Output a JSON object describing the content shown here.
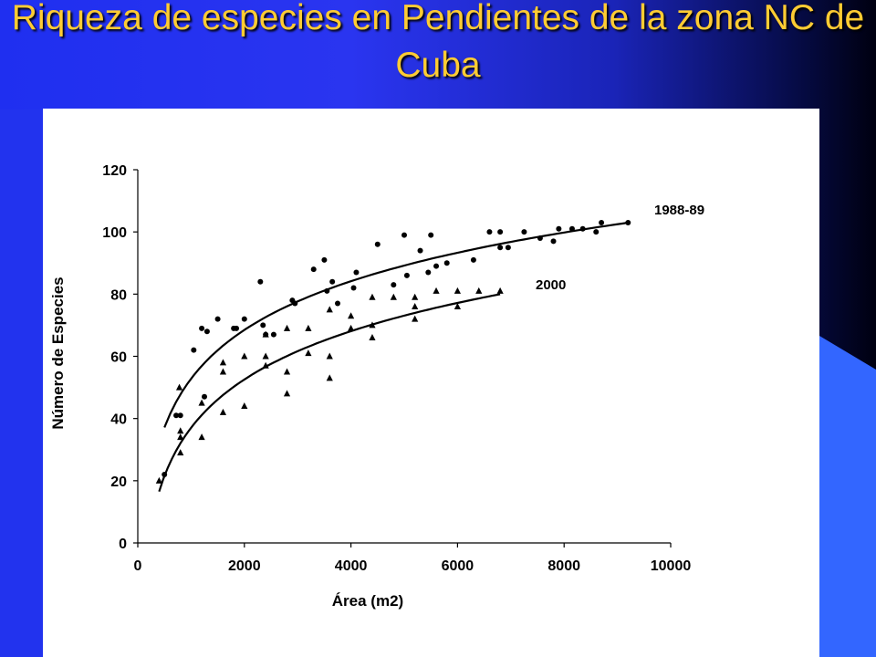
{
  "slide": {
    "title": "Riqueza de especies en Pendientes de la zona NC de Cuba",
    "background_colors": [
      "#1f2ff0",
      "#000010",
      "#3366ff"
    ],
    "title_color": "#ffcc33"
  },
  "chart_data": {
    "type": "scatter",
    "title": "",
    "xlabel": "Área (m2)",
    "ylabel": "Número de Especies",
    "xlim": [
      0,
      10000
    ],
    "ylim": [
      0,
      120
    ],
    "xticks": [
      "0",
      "2000",
      "4000",
      "6000",
      "8000",
      "10000"
    ],
    "yticks": [
      "0",
      "20",
      "40",
      "60",
      "80",
      "100",
      "120"
    ],
    "grid": false,
    "series": [
      {
        "name": "1988-89",
        "marker": "circle",
        "trend": {
          "type": "log",
          "a": -103.3,
          "b": 22.6,
          "x_range": [
            500,
            9200
          ]
        },
        "x": [
          500,
          720,
          800,
          1050,
          1200,
          1250,
          1300,
          1500,
          1800,
          1850,
          2000,
          2300,
          2350,
          2400,
          2550,
          2900,
          2950,
          3300,
          3500,
          3550,
          3650,
          3750,
          4050,
          4100,
          4500,
          4800,
          5000,
          5050,
          5300,
          5450,
          5500,
          5600,
          5800,
          6300,
          6600,
          6800,
          6800,
          6950,
          7250,
          7550,
          7800,
          7900,
          8150,
          8350,
          8600,
          8700,
          9200
        ],
        "y": [
          22,
          41,
          41,
          62,
          69,
          47,
          68,
          72,
          69,
          69,
          72,
          84,
          70,
          67,
          67,
          78,
          77,
          88,
          91,
          81,
          84,
          77,
          82,
          87,
          96,
          83,
          99,
          86,
          94,
          87,
          99,
          89,
          90,
          91,
          100,
          100,
          95,
          95,
          100,
          98,
          97,
          101,
          101,
          101,
          100,
          103,
          103
        ]
      },
      {
        "name": "2000",
        "marker": "triangle",
        "trend": {
          "type": "log",
          "a": -117.7,
          "b": 22.4,
          "x_range": [
            400,
            6800
          ]
        },
        "x": [
          400,
          780,
          800,
          800,
          800,
          1200,
          1200,
          1600,
          1600,
          1600,
          2000,
          2000,
          2400,
          2400,
          2400,
          2800,
          2800,
          2800,
          3200,
          3200,
          3600,
          3600,
          3600,
          4000,
          4000,
          4400,
          4400,
          4400,
          4800,
          5200,
          5200,
          5200,
          5600,
          6000,
          6000,
          6400,
          6800
        ],
        "y": [
          20,
          50,
          36,
          34,
          29,
          34,
          45,
          58,
          55,
          42,
          44,
          60,
          67,
          60,
          57,
          48,
          55,
          69,
          61,
          69,
          53,
          60,
          75,
          69,
          73,
          70,
          66,
          79,
          79,
          72,
          76,
          79,
          81,
          76,
          81,
          81,
          81
        ]
      }
    ]
  }
}
